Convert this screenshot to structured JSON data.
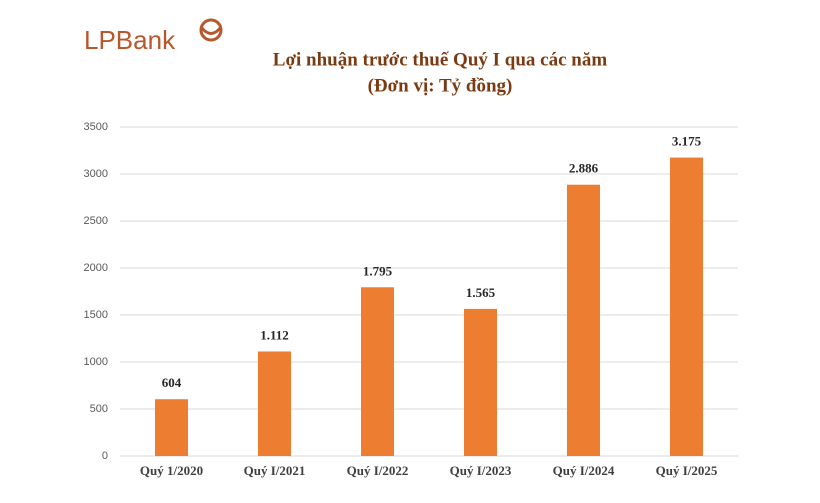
{
  "brand": "LPBank",
  "chart_data": {
    "type": "bar",
    "title": "Lợi nhuận trước thuế Quý I qua các năm",
    "subtitle": "(Đơn vị: Tỷ đồng)",
    "categories": [
      "Quý 1/2020",
      "Quý I/2021",
      "Quý I/2022",
      "Quý I/2023",
      "Quý I/2024",
      "Quý I/2025"
    ],
    "values": [
      604,
      1112,
      1795,
      1565,
      2886,
      3175
    ],
    "value_labels": [
      "604",
      "1.112",
      "1.795",
      "1.565",
      "2.886",
      "3.175"
    ],
    "color": "#ed7d31",
    "ylim": [
      0,
      3500
    ],
    "yticks": [
      0,
      500,
      1000,
      1500,
      2000,
      2500,
      3000,
      3500
    ],
    "grid": true
  }
}
